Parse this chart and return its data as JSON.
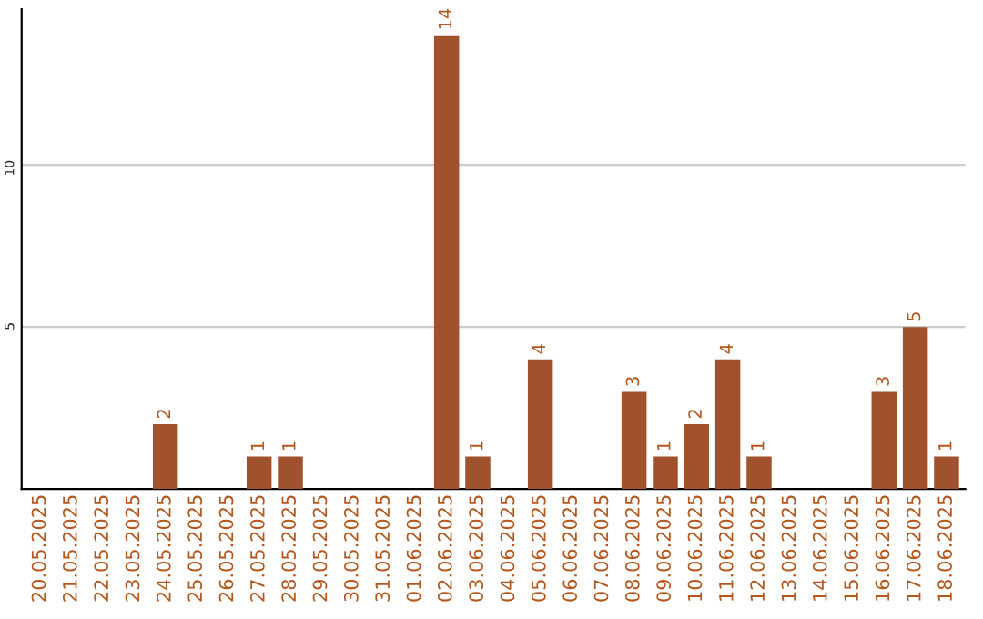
{
  "chart_data": {
    "type": "bar",
    "categories": [
      "20.05.2025",
      "21.05.2025",
      "22.05.2025",
      "23.05.2025",
      "24.05.2025",
      "25.05.2025",
      "26.05.2025",
      "27.05.2025",
      "28.05.2025",
      "29.05.2025",
      "30.05.2025",
      "31.05.2025",
      "01.06.2025",
      "02.06.2025",
      "03.06.2025",
      "04.06.2025",
      "05.06.2025",
      "06.06.2025",
      "07.06.2025",
      "08.06.2025",
      "09.06.2025",
      "10.06.2025",
      "11.06.2025",
      "12.06.2025",
      "13.06.2025",
      "14.06.2025",
      "15.06.2025",
      "16.06.2025",
      "17.06.2025",
      "18.06.2025"
    ],
    "values": [
      0,
      0,
      0,
      0,
      2,
      0,
      0,
      1,
      1,
      0,
      0,
      0,
      0,
      14,
      1,
      0,
      4,
      0,
      0,
      3,
      1,
      2,
      4,
      1,
      0,
      0,
      0,
      3,
      5,
      1
    ],
    "value_labels": [
      null,
      null,
      null,
      null,
      "2",
      null,
      null,
      "1",
      "1",
      null,
      null,
      null,
      null,
      "14",
      "1",
      null,
      "4",
      null,
      null,
      "3",
      "1",
      "2",
      "4",
      "1",
      null,
      null,
      null,
      "3",
      "5",
      "1"
    ],
    "color": "#a0522d",
    "ylim": [
      0,
      14.8
    ],
    "yticks": [
      5,
      10
    ],
    "grid": "y",
    "legend": false
  }
}
